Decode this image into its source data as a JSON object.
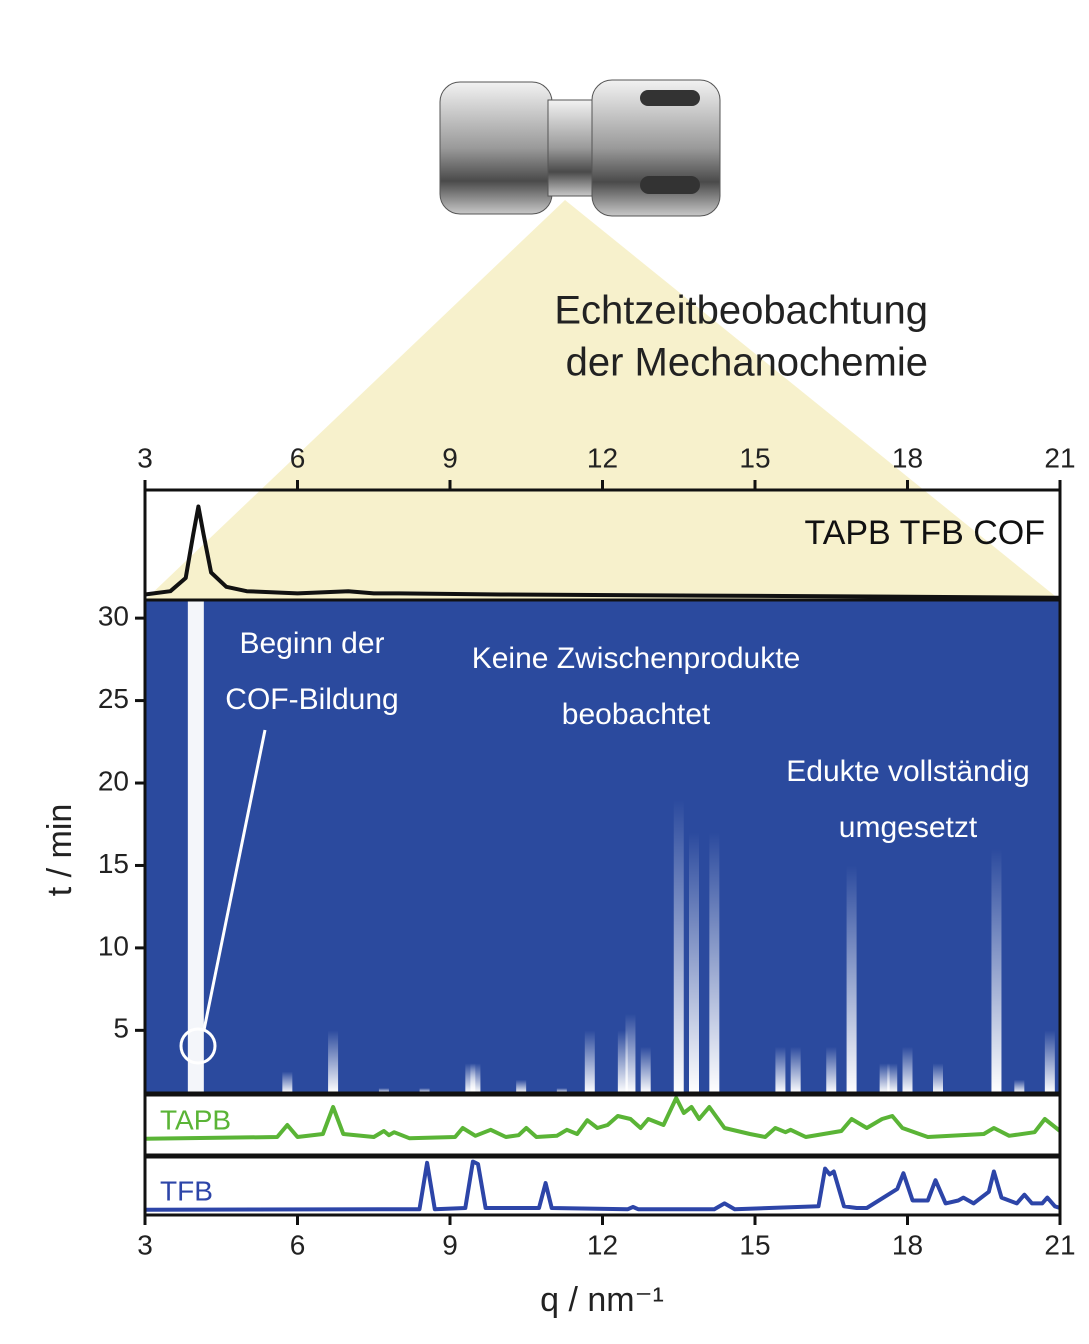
{
  "title": [
    "Echtzeitbeobachtung",
    "der Mechanochemie"
  ],
  "chart_data": [
    {
      "type": "line",
      "xlim": [
        3,
        21
      ],
      "xticks": [
        3,
        6,
        9,
        12,
        15,
        18,
        21
      ],
      "series": [
        {
          "name": "TAPB TFB COF",
          "color": "#111111",
          "x": [
            3,
            3.5,
            3.8,
            3.95,
            4.05,
            4.15,
            4.3,
            4.6,
            5,
            6,
            7,
            7.5,
            8,
            10,
            14,
            18,
            21
          ],
          "values": [
            0.05,
            0.08,
            0.2,
            0.6,
            0.85,
            0.6,
            0.25,
            0.12,
            0.08,
            0.06,
            0.08,
            0.06,
            0.06,
            0.05,
            0.04,
            0.03,
            0.02
          ]
        }
      ]
    },
    {
      "type": "heatmap",
      "ylabel": "t / min",
      "ylim": [
        1.2,
        31.1
      ],
      "yticks": [
        5,
        10,
        15,
        20,
        25,
        30
      ],
      "x": [
        4.0,
        5.8,
        6.7,
        7.7,
        8.5,
        9.4,
        9.5,
        10.4,
        11.2,
        11.75,
        12.4,
        12.55,
        12.85,
        13.5,
        13.8,
        14.2,
        15.5,
        15.8,
        16.5,
        16.9,
        17.55,
        17.7,
        18.0,
        18.6,
        19.75,
        20.2,
        20.8
      ],
      "values": [
        31.1,
        2.5,
        5,
        1.5,
        1.5,
        3,
        3,
        2,
        1.5,
        5,
        5,
        6,
        4,
        19,
        17,
        17,
        4,
        4,
        4,
        15,
        3,
        3,
        4,
        3,
        16,
        2,
        5
      ],
      "annotations": [
        [
          "Beginn der",
          "COF-Bildung"
        ],
        [
          "Keine Zwischenprodukte",
          "beobachtet"
        ],
        [
          "Edukte vollständig",
          "umgesetzt"
        ]
      ]
    },
    {
      "type": "line",
      "series": [
        {
          "name": "TAPB",
          "color": "#5ab436",
          "x": [
            3,
            5.6,
            5.8,
            6.0,
            6.5,
            6.7,
            6.9,
            7.5,
            7.7,
            7.8,
            7.9,
            8.2,
            9.1,
            9.25,
            9.5,
            9.8,
            10.1,
            10.35,
            10.5,
            10.7,
            11.1,
            11.3,
            11.5,
            11.7,
            11.9,
            12.1,
            12.3,
            12.55,
            12.75,
            12.9,
            13.2,
            13.45,
            13.6,
            13.75,
            13.9,
            14.1,
            14.4,
            14.9,
            15.2,
            15.4,
            15.6,
            15.7,
            16.0,
            16.7,
            16.9,
            17.2,
            17.5,
            17.7,
            17.9,
            18.4,
            19.5,
            19.7,
            20.0,
            20.5,
            20.7,
            21
          ],
          "values": [
            0.27,
            0.3,
            0.5,
            0.3,
            0.35,
            0.8,
            0.35,
            0.3,
            0.4,
            0.33,
            0.38,
            0.28,
            0.3,
            0.45,
            0.32,
            0.42,
            0.3,
            0.33,
            0.45,
            0.3,
            0.32,
            0.42,
            0.35,
            0.58,
            0.45,
            0.5,
            0.65,
            0.6,
            0.45,
            0.6,
            0.5,
            0.95,
            0.7,
            0.8,
            0.6,
            0.8,
            0.45,
            0.35,
            0.3,
            0.45,
            0.38,
            0.42,
            0.3,
            0.4,
            0.6,
            0.45,
            0.6,
            0.65,
            0.45,
            0.3,
            0.35,
            0.45,
            0.32,
            0.38,
            0.6,
            0.4
          ]
        }
      ]
    },
    {
      "type": "line",
      "xlim": [
        3,
        21
      ],
      "xticks": [
        3,
        6,
        9,
        12,
        15,
        18,
        21
      ],
      "xlabel": "q / nm⁻¹",
      "series": [
        {
          "name": "TFB",
          "color": "#2d45a8",
          "x": [
            3,
            8.4,
            8.55,
            8.7,
            9.3,
            9.45,
            9.55,
            9.7,
            10.75,
            10.88,
            11.0,
            12.5,
            12.6,
            12.7,
            14.2,
            14.4,
            14.6,
            16.25,
            16.38,
            16.47,
            16.55,
            16.75,
            17.0,
            17.2,
            17.8,
            17.92,
            18.1,
            18.4,
            18.55,
            18.75,
            19.0,
            19.1,
            19.3,
            19.6,
            19.7,
            19.85,
            20.15,
            20.3,
            20.45,
            20.65,
            20.75,
            20.9,
            21
          ],
          "values": [
            0.09,
            0.1,
            0.9,
            0.1,
            0.12,
            0.92,
            0.88,
            0.12,
            0.12,
            0.55,
            0.12,
            0.1,
            0.14,
            0.1,
            0.1,
            0.2,
            0.1,
            0.15,
            0.8,
            0.7,
            0.75,
            0.15,
            0.12,
            0.12,
            0.45,
            0.72,
            0.25,
            0.25,
            0.6,
            0.2,
            0.25,
            0.3,
            0.2,
            0.4,
            0.75,
            0.3,
            0.2,
            0.35,
            0.2,
            0.2,
            0.3,
            0.15,
            0.12
          ]
        }
      ]
    }
  ]
}
